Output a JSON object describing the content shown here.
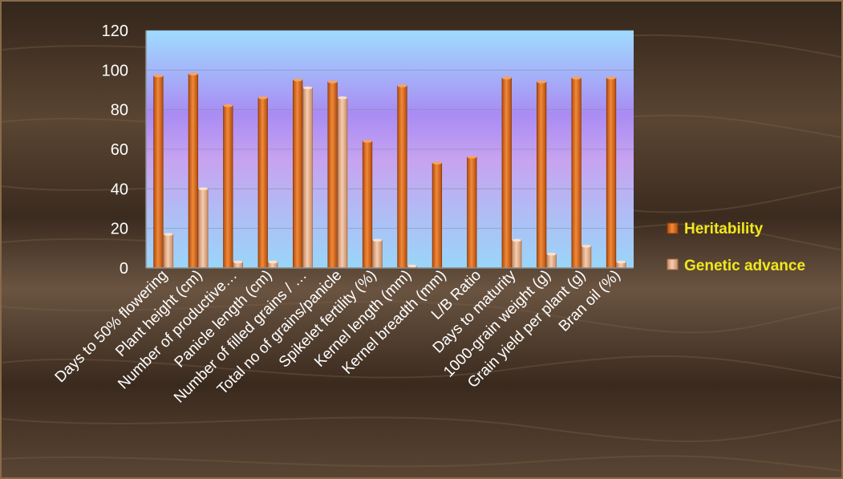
{
  "colors": {
    "heritability": "#d8661a",
    "genetic_advance": "#e9b48f",
    "legend_text": "#f2e81c",
    "axis_text": "#ffffff",
    "plot_top": "#9fd8ff",
    "plot_mid": "#b38cf2",
    "plot_bottom": "#9ad2f8",
    "wood_dark": "#3a2a1e",
    "wood_light": "#6a5340"
  },
  "chart_data": {
    "type": "bar",
    "categories": [
      "Days to 50% flowering",
      "Plant height (cm)",
      "Number of productive…",
      "Panicle length (cm)",
      "Number of filled grains / …",
      "Total no of grains/panicle",
      "Spikelet fertility (%)",
      "Kernel length (mm)",
      "Kernel breadth (mm)",
      "L/B Ratio",
      "Days to maturity",
      "1000-grain weight (g)",
      "Grain yield per plant (g)",
      "Bran oil (%)"
    ],
    "series": [
      {
        "name": "Heritability",
        "values": [
          97,
          98,
          82,
          86,
          95,
          94,
          64,
          92,
          53,
          56,
          96,
          94,
          96,
          96
        ]
      },
      {
        "name": "Genetic advance",
        "values": [
          17,
          40,
          3,
          3,
          91,
          86,
          14,
          1,
          0,
          0,
          14,
          7,
          11,
          3
        ]
      }
    ],
    "ylim": [
      0,
      120
    ],
    "yticks": [
      "0",
      "20",
      "40",
      "60",
      "80",
      "100",
      "120"
    ],
    "grid": true,
    "legend_position": "right"
  }
}
